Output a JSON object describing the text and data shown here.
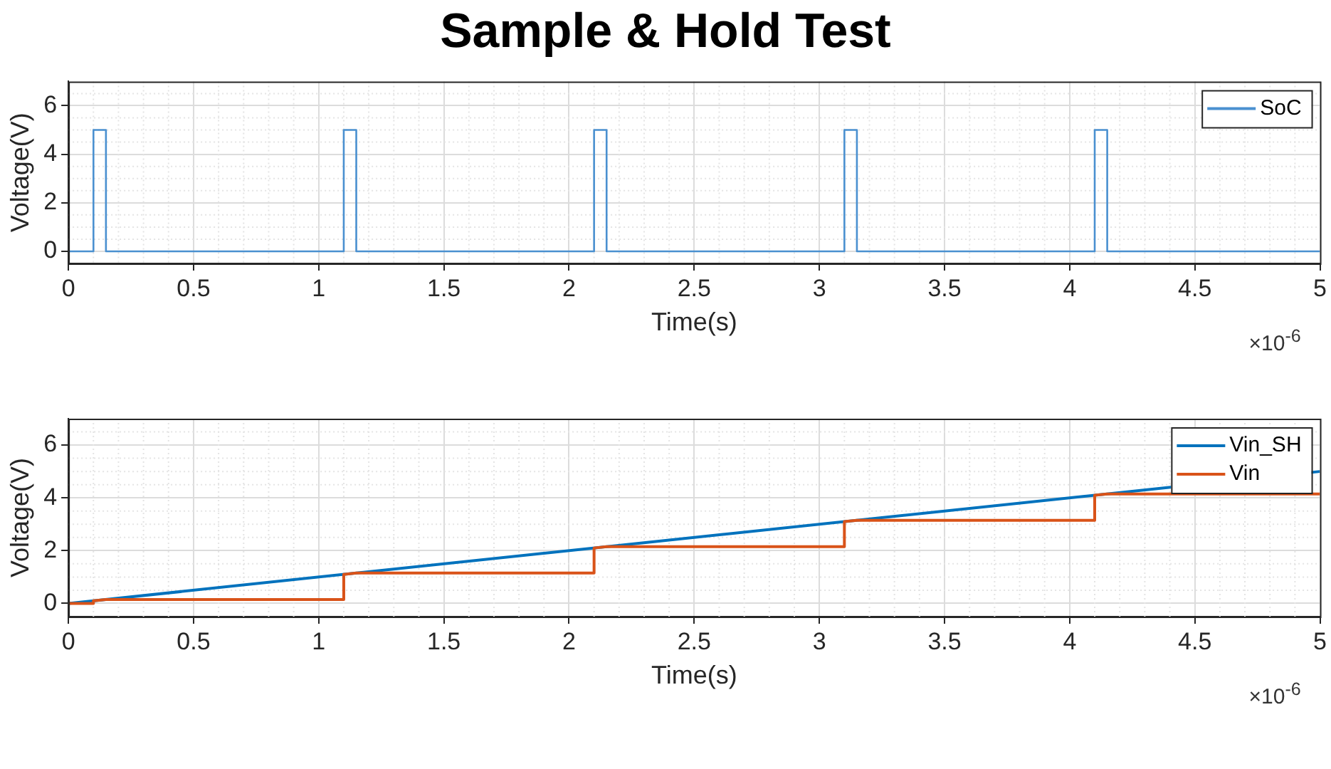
{
  "chart_data": [
    {
      "type": "line",
      "title": "Sample & Hold Test",
      "xlabel": "Time(s)",
      "ylabel": "Voltage(V)",
      "annotations": [
        "×10$^{-6}$"
      ],
      "xlim": [
        0,
        5
      ],
      "xticks": [
        0,
        0.5,
        1,
        1.5,
        2,
        2.5,
        3,
        3.5,
        4,
        4.5,
        5
      ],
      "ylim": [
        -0.5,
        7
      ],
      "yticks": [
        0,
        2,
        4,
        6
      ],
      "grid": true,
      "legend": "top right",
      "marker": "none",
      "line_style": "solid",
      "series": [
        {
          "name": "SoC",
          "color": "#4a90d0",
          "x": [
            0,
            0.1,
            0.1,
            0.15,
            0.15,
            1.1,
            1.1,
            1.15,
            1.15,
            2.1,
            2.1,
            2.15,
            2.15,
            3.1,
            3.1,
            3.15,
            3.15,
            4.1,
            4.1,
            4.15,
            4.15,
            5
          ],
          "values": [
            0,
            0,
            5,
            5,
            0,
            0,
            5,
            5,
            0,
            0,
            5,
            5,
            0,
            0,
            5,
            5,
            0,
            0,
            5,
            5,
            0,
            0
          ]
        }
      ]
    },
    {
      "type": "line",
      "xlabel": "Time(s)",
      "ylabel": "Voltage(V)",
      "annotations": [
        "×10$^{-6}$"
      ],
      "xlim": [
        0,
        5
      ],
      "xticks": [
        0,
        0.5,
        1,
        1.5,
        2,
        2.5,
        3,
        3.5,
        4,
        4.5,
        5
      ],
      "ylim": [
        -0.5,
        7
      ],
      "yticks": [
        0,
        2,
        4,
        6
      ],
      "grid": true,
      "legend": "top right",
      "marker": "none",
      "line_style": "solid",
      "series": [
        {
          "name": "Vin_SH",
          "color": "#0072bd",
          "x": [
            0,
            5
          ],
          "values": [
            0,
            5
          ]
        },
        {
          "name": "Vin",
          "color": "#d95319",
          "x": [
            0,
            0.1,
            0.1,
            0.15,
            1.1,
            1.1,
            1.15,
            2.1,
            2.1,
            2.15,
            3.1,
            3.1,
            3.15,
            4.1,
            4.1,
            4.15,
            5
          ],
          "values": [
            0,
            0,
            0.1,
            0.15,
            0.15,
            1.1,
            1.15,
            1.15,
            2.1,
            2.15,
            2.15,
            3.1,
            3.15,
            3.15,
            4.1,
            4.15,
            4.15
          ]
        }
      ]
    }
  ]
}
